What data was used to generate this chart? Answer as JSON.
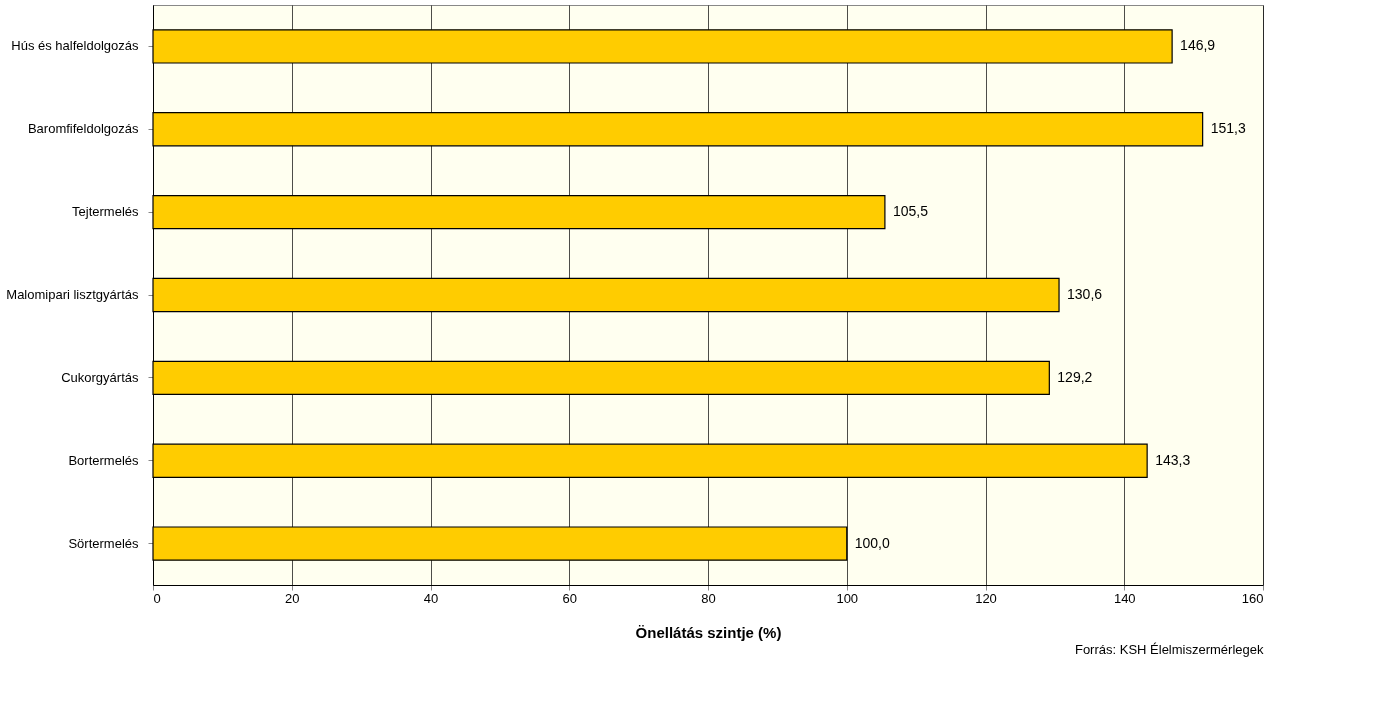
{
  "chart_data": {
    "type": "bar",
    "orientation": "horizontal",
    "xlabel": "Önellátás szintje (%)",
    "categories": [
      "Hús és halfeldolgozás",
      "Baromfifeldolgozás",
      "Tejtermelés",
      "Malomipari lisztgyártás",
      "Cukorgyártás",
      "Bortermelés",
      "Sörtermelés"
    ],
    "values": [
      146.9,
      151.3,
      105.5,
      130.6,
      129.2,
      143.3,
      100.0
    ],
    "value_labels": [
      "146,9",
      "151,3",
      "105,5",
      "130,6",
      "129,2",
      "143,3",
      "100,0"
    ],
    "color": "#ffcc00",
    "xlim": [
      0,
      160
    ],
    "xticks": [
      0,
      20,
      40,
      60,
      80,
      100,
      120,
      140,
      160
    ],
    "grid": "x",
    "annotations": [
      "Forrás: KSH Élelmiszermérlegek"
    ]
  }
}
